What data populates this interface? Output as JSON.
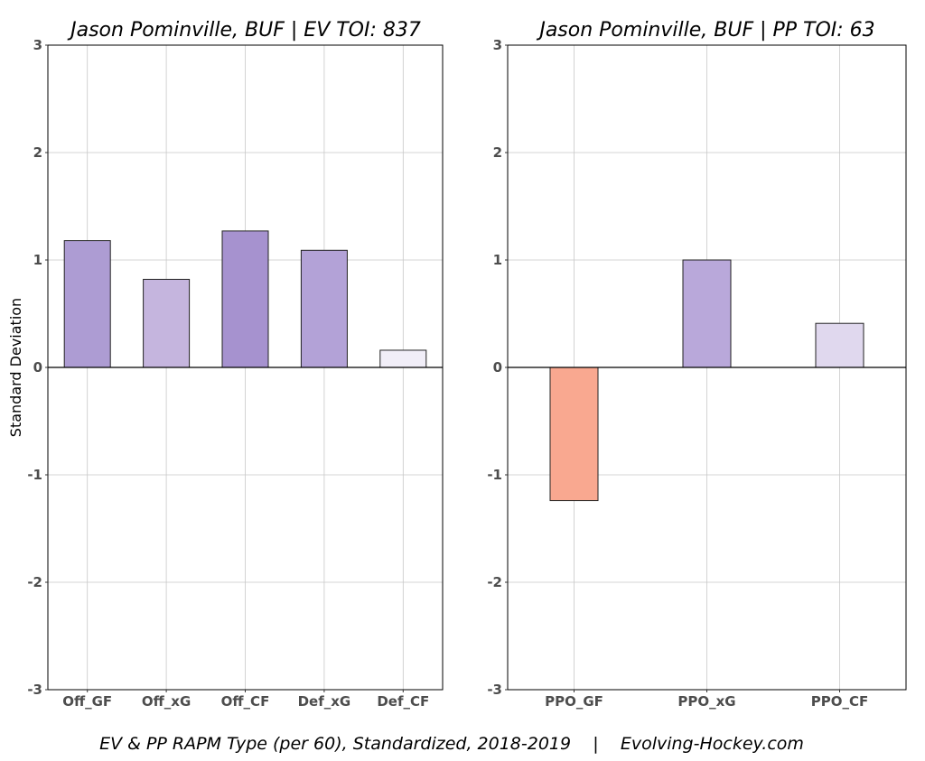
{
  "chart_data": [
    {
      "type": "bar",
      "title": "Jason Pominville, BUF  |  EV TOI: 837",
      "ylabel": "Standard Deviation",
      "ylim": [
        -3,
        3
      ],
      "yticks": [
        "-3",
        "-2",
        "-1",
        "0",
        "1",
        "2",
        "3"
      ],
      "grid": true,
      "categories": [
        "Off_GF",
        "Off_xG",
        "Off_CF",
        "Def_xG",
        "Def_CF"
      ],
      "values": [
        1.18,
        0.82,
        1.27,
        1.09,
        0.16
      ],
      "colors": [
        "#ad9cd3",
        "#c5b5de",
        "#a692cf",
        "#b3a2d7",
        "#f1eef8"
      ]
    },
    {
      "type": "bar",
      "title": "Jason Pominville, BUF  |  PP TOI: 63",
      "ylabel": "",
      "ylim": [
        -3,
        3
      ],
      "yticks": [
        "-3",
        "-2",
        "-1",
        "0",
        "1",
        "2",
        "3"
      ],
      "grid": true,
      "categories": [
        "PPO_GF",
        "PPO_xG",
        "PPO_CF"
      ],
      "values": [
        -1.24,
        1.0,
        0.41
      ],
      "colors": [
        "#f9a890",
        "#b9a8da",
        "#e0d8ee"
      ]
    }
  ],
  "caption": "EV & PP RAPM Type (per 60), Standardized, 2018-2019    |    Evolving-Hockey.com"
}
